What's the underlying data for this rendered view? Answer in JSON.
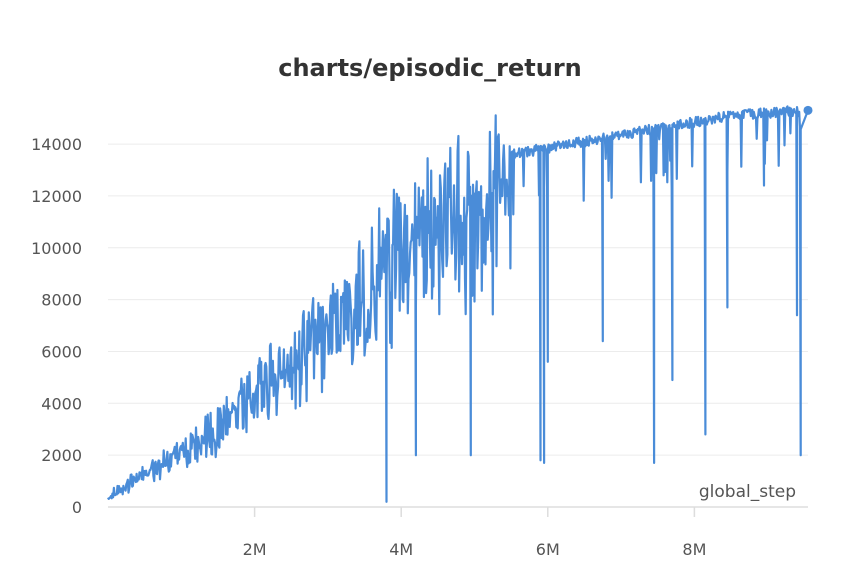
{
  "chart_data": {
    "type": "line",
    "title": "charts/episodic_return",
    "xlabel": "global_step",
    "ylabel": "",
    "xlim": [
      0,
      9550000
    ],
    "ylim": [
      0,
      15700
    ],
    "xticks": [
      {
        "value": 2000000,
        "label": "2M"
      },
      {
        "value": 4000000,
        "label": "4M"
      },
      {
        "value": 6000000,
        "label": "6M"
      },
      {
        "value": 8000000,
        "label": "8M"
      }
    ],
    "yticks": [
      {
        "value": 0,
        "label": "0"
      },
      {
        "value": 2000,
        "label": "2000"
      },
      {
        "value": 4000,
        "label": "4000"
      },
      {
        "value": 6000,
        "label": "6000"
      },
      {
        "value": 8000,
        "label": "8000"
      },
      {
        "value": 10000,
        "label": "10000"
      },
      {
        "value": 12000,
        "label": "12000"
      },
      {
        "value": 14000,
        "label": "14000"
      }
    ],
    "grid": true,
    "legend": "none",
    "series": [
      {
        "color": "#4a8cd8",
        "x": [
          0,
          100000,
          200000,
          300000,
          400000,
          500000,
          600000,
          700000,
          800000,
          900000,
          1000000,
          1100000,
          1200000,
          1300000,
          1400000,
          1500000,
          1600000,
          1700000,
          1800000,
          1900000,
          2000000,
          2100000,
          2200000,
          2300000,
          2400000,
          2500000,
          2600000,
          2700000,
          2800000,
          2900000,
          3000000,
          3100000,
          3200000,
          3300000,
          3400000,
          3500000,
          3600000,
          3700000,
          3800000,
          3900000,
          4000000,
          4100000,
          4200000,
          4300000,
          4400000,
          4500000,
          4600000,
          4700000,
          4800000,
          4900000,
          5000000,
          5100000,
          5200000,
          5300000,
          5400000,
          5500000,
          5600000,
          5700000,
          5800000,
          5900000,
          6000000,
          6100000,
          6200000,
          6300000,
          6400000,
          6500000,
          6600000,
          6700000,
          6800000,
          6900000,
          7000000,
          7100000,
          7200000,
          7300000,
          7400000,
          7500000,
          7600000,
          7700000,
          7800000,
          7900000,
          8000000,
          8100000,
          8200000,
          8300000,
          8400000,
          8500000,
          8600000,
          8700000,
          8800000,
          8900000,
          9000000,
          9100000,
          9200000,
          9300000,
          9400000,
          9500000
        ],
        "y": [
          500,
          700,
          900,
          1100,
          1300,
          1500,
          1700,
          1900,
          2100,
          2300,
          2500,
          2700,
          3000,
          3200,
          3400,
          3700,
          4000,
          4300,
          4600,
          4900,
          5200,
          5500,
          5800,
          6100,
          6400,
          6700,
          7000,
          7300,
          7600,
          7900,
          8200,
          8500,
          8800,
          9100,
          9400,
          9700,
          10000,
          10300,
          10600,
          10900,
          11200,
          11500,
          11800,
          12100,
          12300,
          12500,
          12700,
          12900,
          13100,
          13200,
          13300,
          13400,
          13500,
          13600,
          13700,
          13800,
          13850,
          13900,
          13950,
          14000,
          14050,
          14100,
          14150,
          14200,
          14250,
          14300,
          14350,
          14400,
          14450,
          14500,
          14550,
          14600,
          14650,
          14700,
          14750,
          14800,
          14850,
          14900,
          14950,
          15000,
          15050,
          15100,
          15150,
          15200,
          15250,
          15300,
          15320,
          15340,
          15360,
          15380,
          15400,
          15420,
          15440,
          15460,
          15480,
          15300
        ],
        "noise": [
          600,
          700,
          800,
          900,
          1000,
          1100,
          1200,
          1300,
          1500,
          1700,
          1900,
          2100,
          2300,
          2500,
          2700,
          2900,
          3100,
          3300,
          3500,
          3700,
          3900,
          4100,
          4300,
          4500,
          4700,
          4900,
          5100,
          5300,
          5500,
          5700,
          5900,
          6100,
          6300,
          6500,
          6700,
          6900,
          7100,
          7300,
          7500,
          7700,
          7900,
          8100,
          8300,
          8500,
          8700,
          8900,
          9100,
          9300,
          9500,
          9700,
          9900,
          10000,
          10000,
          10000,
          10000,
          10000,
          10000,
          10000,
          10000,
          10000,
          10000,
          10000,
          10000,
          10000,
          10000,
          10000,
          10000,
          10000,
          10000,
          10000,
          10000,
          10000,
          10000,
          10000,
          10000,
          10000,
          10000,
          10000,
          10000,
          10000,
          10000,
          10000,
          10000,
          10000,
          10000,
          10000,
          10000,
          10000,
          10000,
          10000,
          10000,
          10000,
          10000,
          10000,
          10000,
          10000
        ],
        "dips": [
          {
            "x": 3800000,
            "y": 200
          },
          {
            "x": 4200000,
            "y": 2000
          },
          {
            "x": 4950000,
            "y": 2000
          },
          {
            "x": 5900000,
            "y": 1800
          },
          {
            "x": 5950000,
            "y": 1700
          },
          {
            "x": 6000000,
            "y": 5600
          },
          {
            "x": 6750000,
            "y": 6400
          },
          {
            "x": 7450000,
            "y": 1700
          },
          {
            "x": 7700000,
            "y": 4900
          },
          {
            "x": 8150000,
            "y": 2800
          },
          {
            "x": 8450000,
            "y": 7700
          },
          {
            "x": 8950000,
            "y": 12400
          },
          {
            "x": 9400000,
            "y": 7400
          },
          {
            "x": 9450000,
            "y": 2000
          }
        ],
        "last_point": {
          "x": 9550000,
          "y": 15300
        }
      }
    ]
  }
}
